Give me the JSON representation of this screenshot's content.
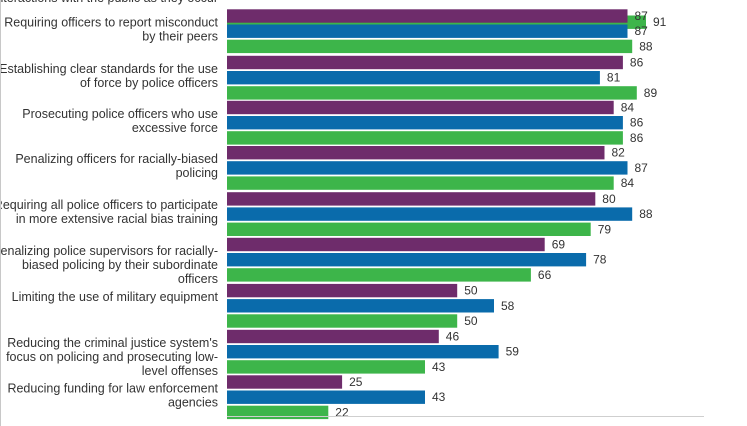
{
  "chart_data": {
    "type": "bar",
    "orientation": "horizontal",
    "xlim": [
      0,
      100
    ],
    "grid": false,
    "legend": "none",
    "categories": [
      [
        "interactions with the public as they occur"
      ],
      [
        "Requiring officers to report misconduct",
        "by their peers"
      ],
      [
        "Establishing clear standards for the use",
        "of force by police officers"
      ],
      [
        "Prosecuting police officers who use",
        "excessive force"
      ],
      [
        "Penalizing officers for racially-biased",
        "policing"
      ],
      [
        "Requiring all police officers to participate",
        "in more extensive racial bias training"
      ],
      [
        "Penalizing police supervisors for racially-",
        "biased policing by their subordinate",
        "officers"
      ],
      [
        "Limiting the use of military equipment"
      ],
      [
        "Reducing the criminal justice system's",
        "focus on policing and prosecuting low-",
        "level offenses"
      ],
      [
        "Reducing funding for law enforcement",
        "agencies"
      ]
    ],
    "series": [
      {
        "color": "#6e2c6b",
        "values": [
          null,
          87,
          86,
          84,
          82,
          80,
          69,
          50,
          46,
          25
        ]
      },
      {
        "color": "#0a6bab",
        "values": [
          null,
          87,
          81,
          86,
          87,
          88,
          78,
          58,
          59,
          43
        ]
      },
      {
        "color": "#3db54a",
        "values": [
          91,
          88,
          89,
          86,
          84,
          79,
          66,
          50,
          43,
          22
        ]
      }
    ]
  }
}
